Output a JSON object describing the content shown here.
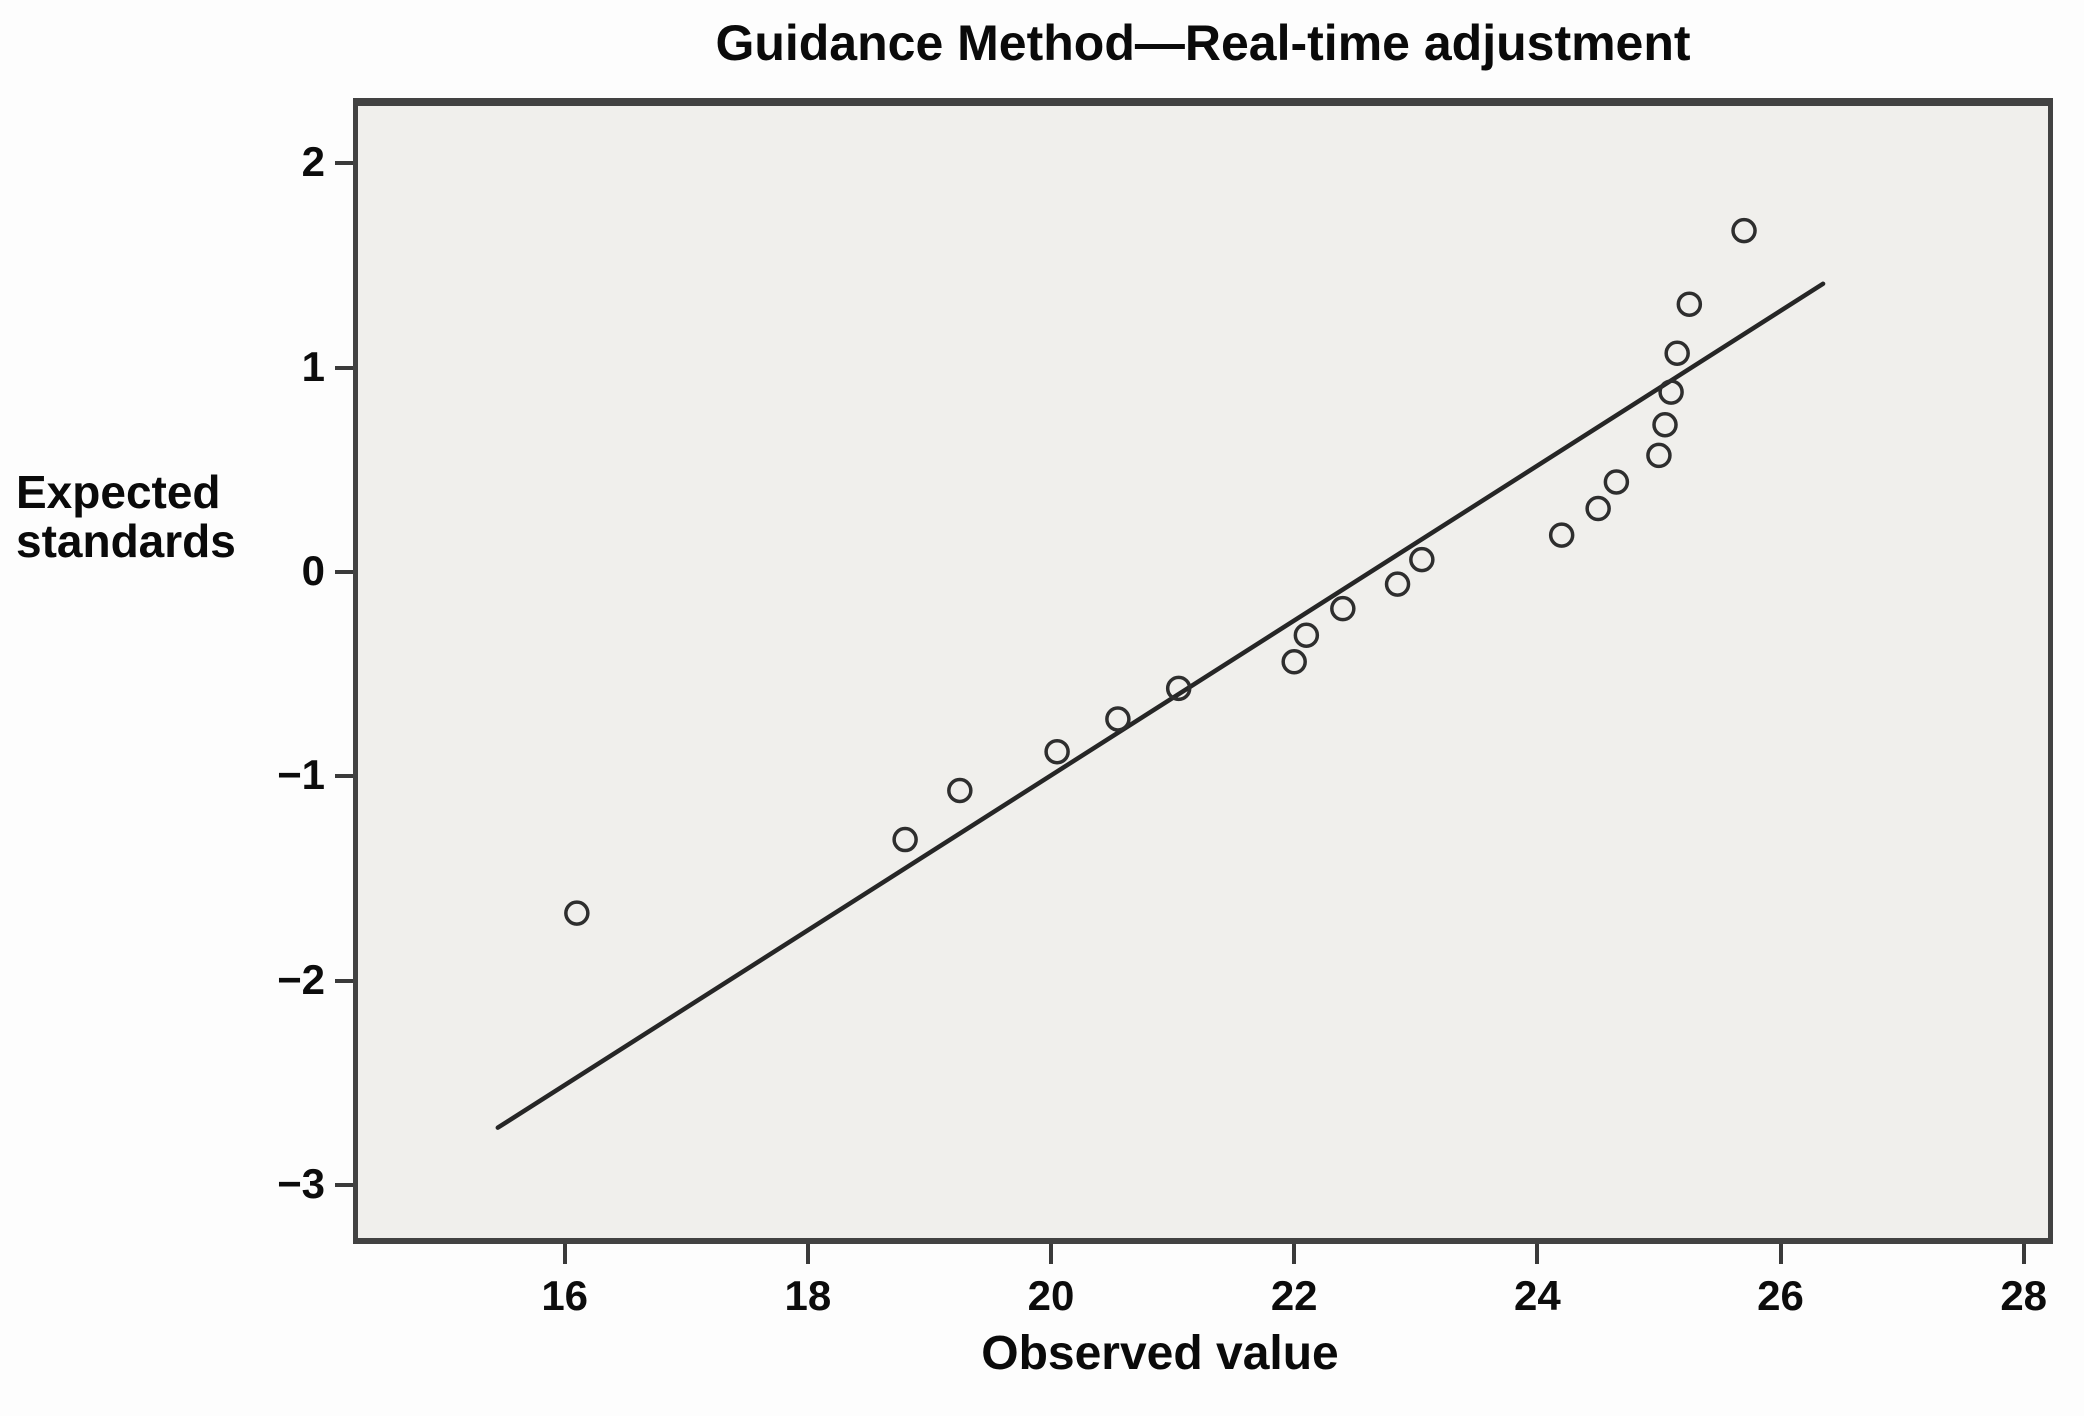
{
  "title": "Guidance Method—Real-time adjustment",
  "axes": {
    "x_title": "Observed value",
    "y_title": "Expected\nstandards"
  },
  "chart_data": {
    "type": "scatter",
    "title": "Guidance Method—Real-time adjustment",
    "xlabel": "Observed value",
    "ylabel": "Expected standards",
    "xlim": [
      14.3,
      28.2
    ],
    "ylim": [
      -3.26,
      2.28
    ],
    "grid": false,
    "legend": null,
    "x_ticks": [
      16,
      18,
      20,
      22,
      24,
      26,
      28
    ],
    "x_tick_labels": [
      "16",
      "18",
      "20",
      "22",
      "24",
      "26",
      "28"
    ],
    "y_ticks": [
      2,
      1,
      0,
      -1,
      -2,
      -3
    ],
    "y_tick_labels": [
      "2",
      "1",
      "0",
      "−1",
      "−2",
      "−3"
    ],
    "points": [
      [
        16.1,
        -1.67
      ],
      [
        18.8,
        -1.31
      ],
      [
        19.25,
        -1.07
      ],
      [
        20.05,
        -0.88
      ],
      [
        20.55,
        -0.72
      ],
      [
        21.05,
        -0.57
      ],
      [
        22.0,
        -0.44
      ],
      [
        22.1,
        -0.31
      ],
      [
        22.4,
        -0.18
      ],
      [
        22.85,
        -0.06
      ],
      [
        23.05,
        0.06
      ],
      [
        24.2,
        0.18
      ],
      [
        24.5,
        0.31
      ],
      [
        24.65,
        0.44
      ],
      [
        25.0,
        0.57
      ],
      [
        25.05,
        0.72
      ],
      [
        25.1,
        0.88
      ],
      [
        25.15,
        1.07
      ],
      [
        25.25,
        1.31
      ],
      [
        25.7,
        1.67
      ]
    ],
    "trend_line": {
      "x1": 15.45,
      "y1": -2.72,
      "x2": 26.35,
      "y2": 1.41
    },
    "marker": {
      "shape": "circle-open",
      "radius": 11,
      "stroke_width": 3.5
    },
    "colors": {
      "plot_bg": "#f0efec",
      "frame": "#424242",
      "marker_stroke": "#2e2e2e",
      "line": "#262626",
      "text": "#0a0a0a",
      "tick": "#3a3a3a"
    }
  }
}
